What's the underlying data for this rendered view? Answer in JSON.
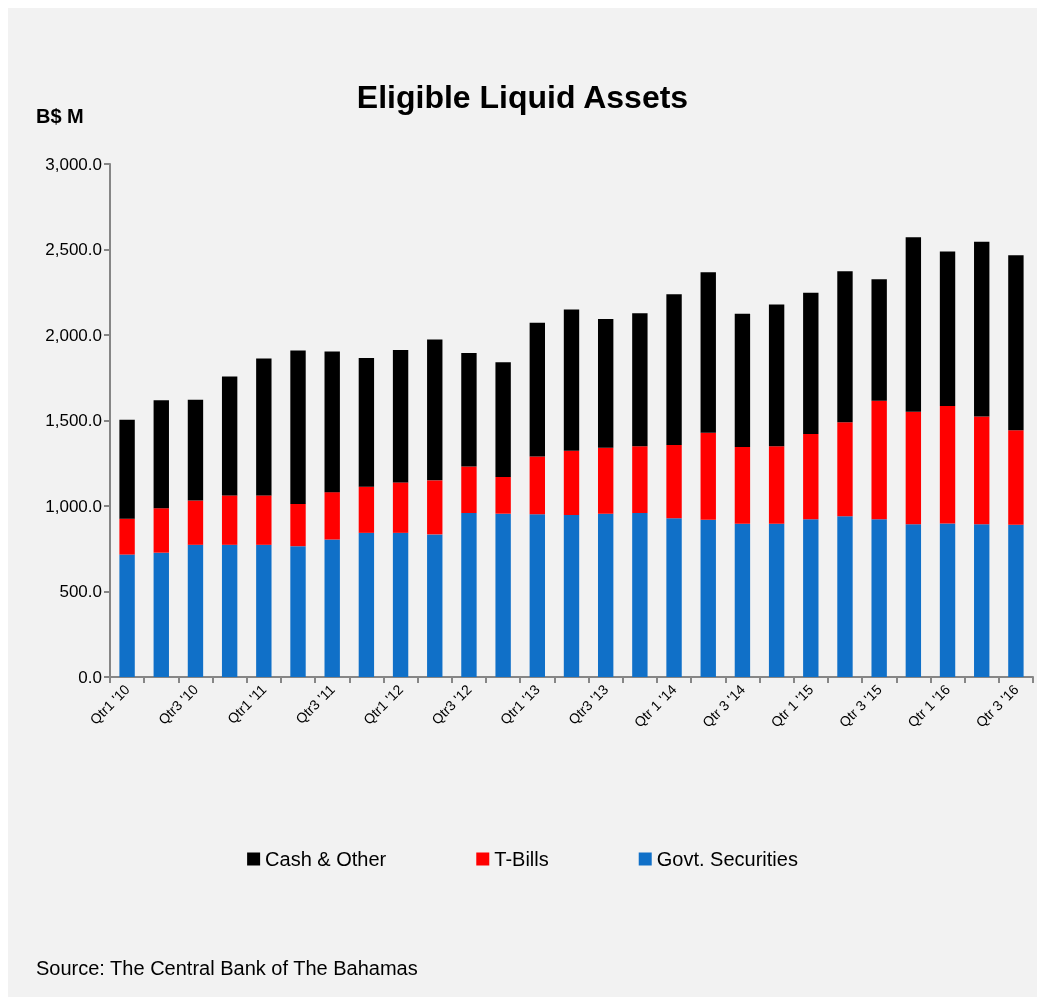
{
  "chart_data": {
    "type": "bar",
    "title": "Eligible Liquid Assets",
    "ylabel": "B$ M",
    "stacked": true,
    "legend": "bottom",
    "grid": false,
    "categories": [
      "Qtr1 '10",
      null,
      "Qtr3 '10",
      null,
      "Qtr1 '11",
      null,
      "Qtr3 '11",
      null,
      "Qtr1 '12",
      null,
      "Qtr3 '12",
      null,
      "Qtr1 '13",
      null,
      "Qtr3 '13",
      null,
      "Qtr 1 '14",
      null,
      "Qtr 3 '14",
      null,
      "Qtr 1 '15",
      null,
      "Qtr 3 '15",
      null,
      "Qtr 1 '16",
      null,
      "Qtr 3 '16"
    ],
    "series": [
      {
        "name": "Govt. Securities",
        "color": "#1070c8",
        "values": [
          716,
          727,
          773,
          773,
          773,
          765,
          804,
          843,
          843,
          834,
          959,
          955,
          952,
          948,
          955,
          959,
          928,
          920,
          896,
          896,
          922,
          940,
          922,
          893,
          898,
          893,
          891
        ]
      },
      {
        "name": "T-Bills",
        "color": "#ff0000",
        "values": [
          210,
          260,
          259,
          289,
          289,
          247,
          277,
          270,
          295,
          316,
          272,
          215,
          338,
          375,
          386,
          390,
          429,
          509,
          449,
          453,
          499,
          550,
          694,
          658,
          687,
          631,
          552
        ]
      },
      {
        "name": "Cash & Other",
        "color": "#000000",
        "values": [
          578,
          631,
          590,
          696,
          800,
          897,
          822,
          753,
          775,
          824,
          664,
          670,
          782,
          826,
          753,
          778,
          882,
          938,
          780,
          829,
          826,
          883,
          710,
          1021,
          904,
          1022,
          1024
        ]
      }
    ],
    "ylim": [
      0,
      3000
    ],
    "yticks": [
      {
        "value": 0,
        "label": "0.0"
      },
      {
        "value": 500,
        "label": "500.0"
      },
      {
        "value": 1000,
        "label": "1,000.0"
      },
      {
        "value": 1500,
        "label": "1,500.0"
      },
      {
        "value": 2000,
        "label": "2,000.0"
      },
      {
        "value": 2500,
        "label": "2,500.0"
      },
      {
        "value": 3000,
        "label": "3,000.0"
      }
    ],
    "annotations": [
      "Source: The Central Bank of The Bahamas"
    ]
  }
}
